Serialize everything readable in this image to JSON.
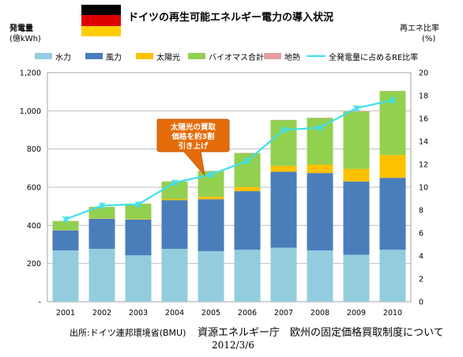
{
  "header": {
    "title": "ドイツの再生可能エネルギー電力の導入状況",
    "flag_colors": [
      "#000000",
      "#dd0000",
      "#ffce00"
    ]
  },
  "axes": {
    "left_label_line1": "発電量",
    "left_label_line2": "(億kWh)",
    "right_label_line1": "再エネ比率",
    "right_label_line2": "(%)"
  },
  "callout": {
    "line1": "太陽光の買取",
    "line2": "価格を約3割",
    "line3": "引き上げ"
  },
  "footer": {
    "source": "出所:ドイツ連邦環境省(BMU)",
    "doc": "資源エネルギー庁　欧州の固定価格買取制度について",
    "date": "2012/3/6"
  },
  "chart_data": {
    "type": "bar",
    "stacked": true,
    "categories": [
      "2001",
      "2002",
      "2003",
      "2004",
      "2005",
      "2006",
      "2007",
      "2008",
      "2009",
      "2010"
    ],
    "series": [
      {
        "name": "水力",
        "color": "#93cddd",
        "values": [
          269,
          277,
          243,
          277,
          265,
          272,
          283,
          269,
          246,
          272
        ]
      },
      {
        "name": "風力",
        "color": "#4a7ebb",
        "values": [
          105,
          158,
          188,
          255,
          272,
          307,
          398,
          405,
          384,
          377
        ]
      },
      {
        "name": "太陽光",
        "color": "#ffc000",
        "values": [
          1,
          2,
          3,
          6,
          13,
          22,
          31,
          44,
          66,
          120
        ]
      },
      {
        "name": "バイオマス合計",
        "color": "#92d050",
        "values": [
          48,
          60,
          80,
          92,
          135,
          178,
          240,
          245,
          301,
          335
        ]
      },
      {
        "name": "地熱",
        "color": "#e6a0a0",
        "values": [
          0,
          0,
          0,
          0,
          0.2,
          0.4,
          0.4,
          0.2,
          0.2,
          0.3
        ]
      }
    ],
    "line_series": {
      "name": "全発電量に占めるRE比率",
      "color": "#3fe0ee",
      "axis": "right",
      "values": [
        7.2,
        8.4,
        8.5,
        10.4,
        11.1,
        12.3,
        15.0,
        15.2,
        16.9,
        17.6
      ]
    },
    "y_left": {
      "min": 0,
      "max": 1200,
      "ticks": [
        "-",
        "200",
        "400",
        "600",
        "800",
        "1,000",
        "1,200"
      ]
    },
    "y_right": {
      "min": 0,
      "max": 20,
      "ticks": [
        "0",
        "2",
        "4",
        "6",
        "8",
        "10",
        "12",
        "14",
        "16",
        "18",
        "20"
      ]
    },
    "grid": true,
    "legend": "top"
  }
}
